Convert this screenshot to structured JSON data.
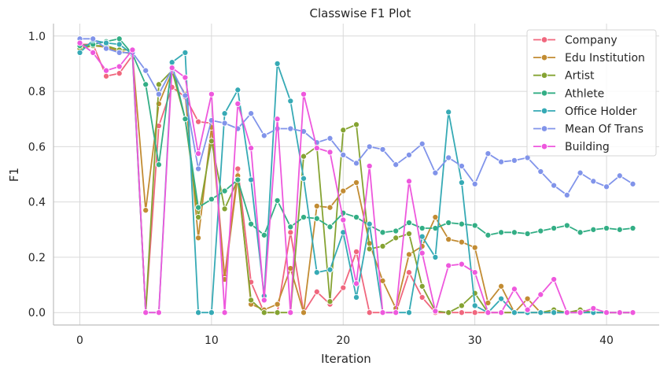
{
  "chart_data": {
    "type": "line",
    "title": "Classwise F1 Plot",
    "xlabel": "Iteration",
    "ylabel": "F1",
    "xlim": [
      -2,
      44
    ],
    "ylim": [
      -0.045,
      1.045
    ],
    "xticks": [
      0,
      10,
      20,
      30,
      40
    ],
    "yticks": [
      0.0,
      0.2,
      0.4,
      0.6,
      0.8,
      1.0
    ],
    "grid": true,
    "legend_position": "top-right",
    "x": [
      0,
      1,
      2,
      3,
      4,
      5,
      6,
      7,
      8,
      9,
      10,
      11,
      12,
      13,
      14,
      15,
      16,
      17,
      18,
      19,
      20,
      21,
      22,
      23,
      24,
      25,
      26,
      27,
      28,
      29,
      30,
      31,
      32,
      33,
      34,
      35,
      36,
      37,
      38,
      39,
      40,
      41,
      42
    ],
    "series": [
      {
        "name": "Company",
        "color": "#f0677e",
        "values": [
          0.97,
          0.97,
          0.855,
          0.865,
          0.93,
          0.0,
          0.675,
          0.815,
          0.78,
          0.69,
          0.685,
          0.13,
          0.52,
          0.11,
          0.0,
          0.0,
          0.29,
          0.0,
          0.075,
          0.03,
          0.09,
          0.22,
          0.0,
          0.0,
          0.0,
          0.145,
          0.055,
          0.0,
          0.0,
          0.0,
          0.0,
          0.0,
          0.0,
          0.0,
          0.0,
          0.0,
          0.0,
          0.0,
          0.0,
          0.0,
          0.0,
          0.0,
          0.0
        ]
      },
      {
        "name": "Edu Institution",
        "color": "#c28c33",
        "values": [
          0.96,
          0.965,
          0.96,
          0.945,
          0.935,
          0.37,
          0.755,
          0.87,
          0.79,
          0.27,
          0.67,
          0.12,
          0.495,
          0.03,
          0.01,
          0.03,
          0.16,
          0.0,
          0.385,
          0.38,
          0.44,
          0.47,
          0.25,
          0.115,
          0.015,
          0.21,
          0.24,
          0.345,
          0.265,
          0.255,
          0.235,
          0.035,
          0.095,
          0.0,
          0.05,
          0.0,
          0.0,
          0.0,
          0.005,
          0.0,
          0.0,
          0.0,
          0.0
        ]
      },
      {
        "name": "Artist",
        "color": "#85a332",
        "values": [
          0.955,
          0.965,
          0.965,
          0.95,
          0.95,
          0.0,
          0.825,
          0.875,
          0.7,
          0.345,
          0.62,
          0.375,
          0.48,
          0.045,
          0.0,
          0.0,
          0.0,
          0.565,
          0.6,
          0.04,
          0.66,
          0.68,
          0.23,
          0.24,
          0.27,
          0.285,
          0.095,
          0.005,
          0.0,
          0.025,
          0.07,
          0.0,
          0.0,
          0.0,
          0.0,
          0.0,
          0.01,
          0.0,
          0.01,
          0.0,
          0.0,
          0.0,
          0.0
        ]
      },
      {
        "name": "Athlete",
        "color": "#33ae85",
        "values": [
          0.965,
          0.97,
          0.98,
          0.99,
          0.935,
          0.825,
          0.535,
          0.9,
          0.7,
          0.38,
          0.41,
          0.44,
          0.48,
          0.32,
          0.28,
          0.405,
          0.31,
          0.345,
          0.34,
          0.31,
          0.36,
          0.345,
          0.315,
          0.29,
          0.295,
          0.325,
          0.305,
          0.305,
          0.325,
          0.32,
          0.315,
          0.28,
          0.29,
          0.29,
          0.285,
          0.295,
          0.305,
          0.315,
          0.29,
          0.3,
          0.305,
          0.3,
          0.305
        ]
      },
      {
        "name": "Office Holder",
        "color": "#36aab5",
        "values": [
          0.94,
          0.985,
          0.975,
          0.97,
          0.935,
          0.0,
          0.0,
          0.905,
          0.94,
          0.0,
          0.0,
          0.72,
          0.805,
          0.48,
          0.06,
          0.9,
          0.765,
          0.485,
          0.145,
          0.155,
          0.29,
          0.055,
          0.32,
          0.0,
          0.0,
          0.0,
          0.275,
          0.2,
          0.725,
          0.47,
          0.025,
          0.0,
          0.05,
          0.0,
          0.0,
          0.0,
          0.0,
          0.0,
          0.0,
          0.0,
          0.0,
          0.0,
          0.0
        ]
      },
      {
        "name": "Mean Of Trans",
        "color": "#8194ea",
        "values": [
          0.99,
          0.99,
          0.955,
          0.94,
          0.94,
          0.875,
          0.79,
          0.88,
          0.785,
          0.52,
          0.695,
          0.685,
          0.665,
          0.72,
          0.64,
          0.665,
          0.665,
          0.655,
          0.615,
          0.63,
          0.57,
          0.54,
          0.6,
          0.59,
          0.535,
          0.57,
          0.61,
          0.505,
          0.56,
          0.53,
          0.465,
          0.575,
          0.545,
          0.55,
          0.56,
          0.51,
          0.46,
          0.425,
          0.505,
          0.475,
          0.455,
          0.495,
          0.465
        ]
      },
      {
        "name": "Building",
        "color": "#ee58dd",
        "values": [
          0.975,
          0.94,
          0.875,
          0.89,
          0.95,
          0.0,
          0.0,
          0.885,
          0.85,
          0.575,
          0.79,
          0.0,
          0.755,
          0.595,
          0.045,
          0.7,
          0.0,
          0.79,
          0.595,
          0.58,
          0.335,
          0.105,
          0.53,
          0.0,
          0.0,
          0.475,
          0.215,
          0.005,
          0.17,
          0.175,
          0.145,
          0.0,
          0.0,
          0.085,
          0.01,
          0.065,
          0.12,
          0.0,
          0.0,
          0.015,
          0.0,
          0.0,
          0.0
        ]
      }
    ]
  }
}
